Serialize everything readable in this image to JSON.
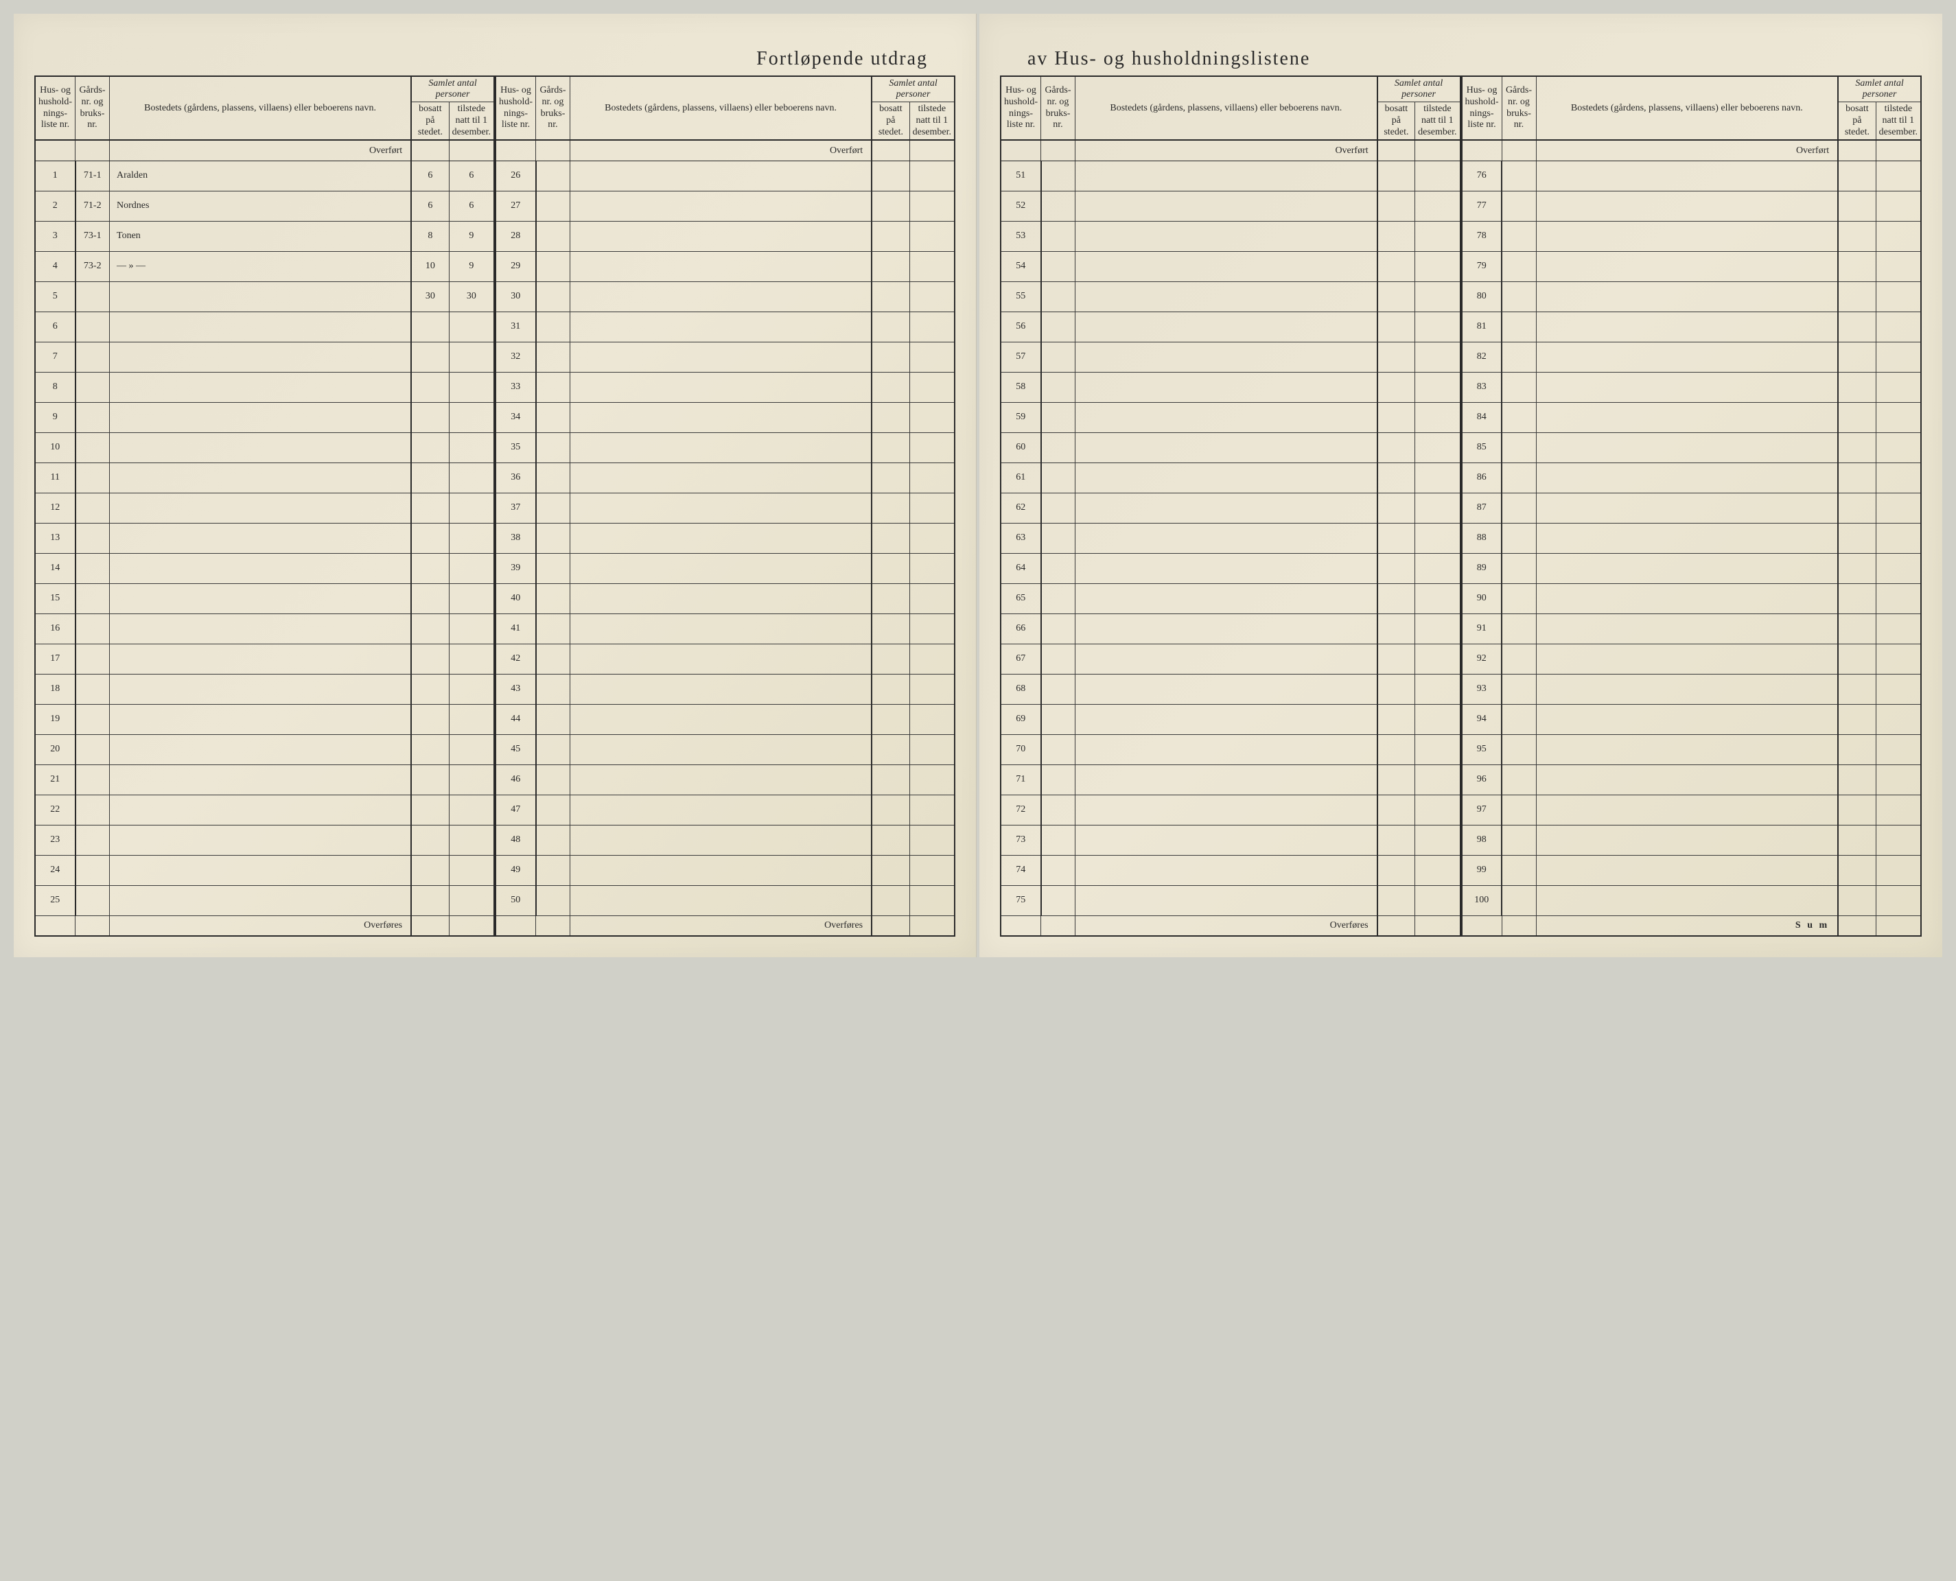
{
  "title_left": "Fortløpende utdrag",
  "title_right": "av Hus- og husholdningslistene",
  "headers": {
    "liste": "Hus- og hushold-nings-liste nr.",
    "gards": "Gårds-nr. og bruks-nr.",
    "bosted": "Bostedets (gårdens, plassens, villaens) eller beboerens navn.",
    "samlet": "Samlet antal personer",
    "bosatt": "bosatt på stedet.",
    "tilstede": "tilstede natt til 1 desember."
  },
  "labels": {
    "overfort": "Overført",
    "overfores": "Overføres",
    "sum": "S u m"
  },
  "entries": [
    {
      "row": 1,
      "gards": "71-1",
      "name": "Aralden",
      "bosatt": "6",
      "tilstede": "6"
    },
    {
      "row": 2,
      "gards": "71-2",
      "name": "Nordnes",
      "bosatt": "6",
      "tilstede": "6"
    },
    {
      "row": 3,
      "gards": "73-1",
      "name": "Tonen",
      "bosatt": "8",
      "tilstede": "9"
    },
    {
      "row": 4,
      "gards": "73-2",
      "name": "— » —",
      "bosatt": "10",
      "tilstede": "9"
    }
  ],
  "totals": {
    "row": 5,
    "bosatt": "30",
    "tilstede": "30"
  },
  "sections": [
    {
      "start": 1,
      "end": 25
    },
    {
      "start": 26,
      "end": 50
    },
    {
      "start": 51,
      "end": 75
    },
    {
      "start": 76,
      "end": 100
    }
  ],
  "colors": {
    "paper": "#e8e2d0",
    "ink": "#2a2a2a",
    "pencil": "#3a3a35"
  }
}
